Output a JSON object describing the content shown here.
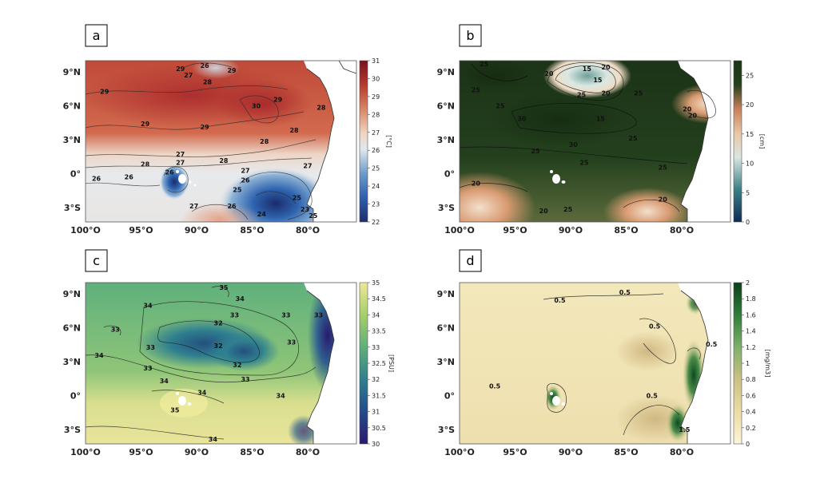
{
  "panels": [
    {
      "letter": "a",
      "unit": "[°C]",
      "colorbar": {
        "ticks": [
          "22",
          "23",
          "24",
          "25",
          "26",
          "27",
          "28",
          "29",
          "30",
          "31"
        ],
        "palette": "temperature",
        "colors": [
          "#1f2d6b",
          "#2f5fae",
          "#6d9bcb",
          "#dfe8ef",
          "#f1d4c2",
          "#d98564",
          "#b53a2c",
          "#7a1120"
        ]
      },
      "contour_labels": [
        "26",
        "29",
        "27",
        "28",
        "29",
        "29",
        "30",
        "28",
        "29",
        "29",
        "28",
        "27",
        "28",
        "27",
        "28",
        "27",
        "26",
        "25",
        "26",
        "24",
        "23",
        "25",
        "26",
        "25",
        "27",
        "26",
        "26",
        "27",
        "28",
        "29"
      ],
      "lat_ticks": [
        "9°N",
        "6°N",
        "3°N",
        "0°",
        "3°S"
      ],
      "lon_ticks": [
        "100°O",
        "95°O",
        "90°O",
        "85°O",
        "80°O"
      ]
    },
    {
      "letter": "b",
      "unit": "[cm]",
      "colorbar": {
        "ticks": [
          "0",
          "5",
          "10",
          "15",
          "20",
          "25"
        ],
        "palette": "brbg",
        "colors": [
          "#0e2a55",
          "#3b7f85",
          "#d9e6e2",
          "#e8c7a8",
          "#c9805a",
          "#24401c",
          "#1d3315"
        ]
      },
      "contour_labels": [
        "25",
        "20",
        "15",
        "20",
        "15",
        "25",
        "25",
        "20",
        "25",
        "30",
        "15",
        "25",
        "30",
        "25",
        "25",
        "20",
        "20",
        "25",
        "20",
        "20",
        "25",
        "25",
        "20"
      ],
      "lat_ticks": [
        "9°N",
        "6°N",
        "3°N",
        "0°",
        "3°S"
      ],
      "lon_ticks": [
        "100°O",
        "95°O",
        "90°O",
        "85°O",
        "80°O"
      ]
    },
    {
      "letter": "c",
      "unit": "[PSU]",
      "colorbar": {
        "ticks": [
          "30",
          "30.5",
          "31",
          "31.5",
          "32",
          "32.5",
          "33",
          "33.5",
          "34",
          "34.5",
          "35"
        ],
        "palette": "salinity",
        "colors": [
          "#2b1a6e",
          "#244b8c",
          "#2f7f8f",
          "#5fb07a",
          "#a6cf6a",
          "#eee89a"
        ]
      },
      "contour_labels": [
        "35",
        "34",
        "34",
        "33",
        "33",
        "32",
        "33",
        "33",
        "32",
        "32",
        "34",
        "33",
        "33",
        "34",
        "34",
        "35",
        "34",
        "34",
        "33",
        "33"
      ],
      "lat_ticks": [
        "9°N",
        "6°N",
        "3°N",
        "0°",
        "3°S"
      ],
      "lon_ticks": [
        "100°O",
        "95°O",
        "90°O",
        "85°O",
        "80°O"
      ]
    },
    {
      "letter": "d",
      "unit": "[mg/m3]",
      "colorbar": {
        "ticks": [
          "0",
          "0.2",
          "0.4",
          "0.6",
          "0.8",
          "1",
          "1.2",
          "1.4",
          "1.6",
          "1.8",
          "2"
        ],
        "palette": "chlorophyll",
        "colors": [
          "#fbf5d7",
          "#ecdca3",
          "#cbc184",
          "#7fb06a",
          "#2f7d3b",
          "#0c3d1a"
        ]
      },
      "contour_labels": [
        "0.5",
        "0.5",
        "0.5",
        "0.5",
        "0.5",
        "0.5",
        "1.5"
      ],
      "lat_ticks": [
        "9°N",
        "6°N",
        "3°N",
        "0°",
        "3°S"
      ],
      "lon_ticks": [
        "100°O",
        "95°O",
        "90°O",
        "85°O",
        "80°O"
      ]
    }
  ]
}
